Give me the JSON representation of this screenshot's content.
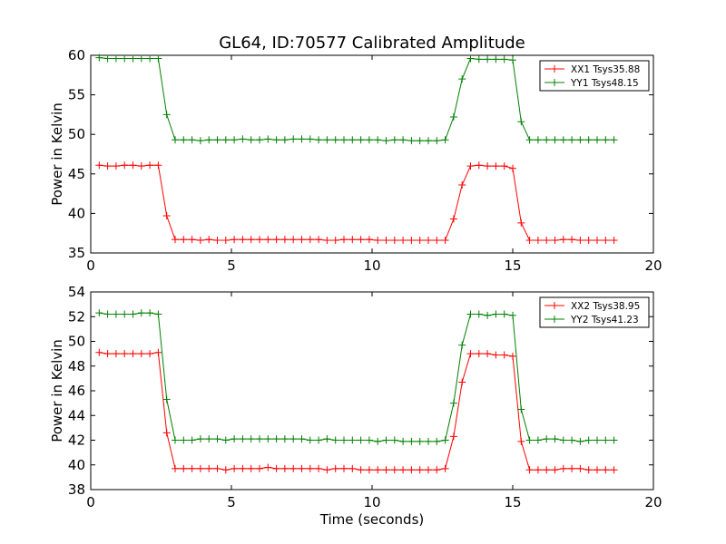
{
  "title": "GL64, ID:70577 Calibrated Amplitude",
  "xlabel": "Time (seconds)",
  "chart_data": [
    {
      "type": "line",
      "ylabel": "Power in Kelvin",
      "xlim": [
        0,
        20
      ],
      "ylim": [
        35,
        60
      ],
      "xticks": [
        0,
        5,
        10,
        15,
        20
      ],
      "yticks": [
        35,
        40,
        45,
        50,
        55,
        60
      ],
      "legend_position": "top-right",
      "series": [
        {
          "name": "XX1 Tsys35.88",
          "color": "#ff0000",
          "x": [
            0.3,
            0.6,
            0.9,
            1.2,
            1.5,
            1.8,
            2.1,
            2.4,
            2.7,
            3.0,
            3.3,
            3.6,
            3.9,
            4.2,
            4.5,
            4.8,
            5.1,
            5.4,
            5.7,
            6.0,
            6.3,
            6.6,
            6.9,
            7.2,
            7.5,
            7.8,
            8.1,
            8.4,
            8.7,
            9.0,
            9.3,
            9.6,
            9.9,
            10.2,
            10.5,
            10.8,
            11.1,
            11.4,
            11.7,
            12.0,
            12.3,
            12.6,
            12.9,
            13.2,
            13.5,
            13.8,
            14.1,
            14.4,
            14.7,
            15.0,
            15.3,
            15.6,
            15.9,
            16.2,
            16.5,
            16.8,
            17.1,
            17.4,
            17.7,
            18.0,
            18.3,
            18.6
          ],
          "y": [
            46.1,
            46.0,
            46.0,
            46.1,
            46.1,
            46.0,
            46.1,
            46.1,
            39.7,
            36.7,
            36.7,
            36.7,
            36.6,
            36.7,
            36.6,
            36.6,
            36.7,
            36.7,
            36.7,
            36.7,
            36.7,
            36.7,
            36.7,
            36.7,
            36.7,
            36.7,
            36.7,
            36.6,
            36.6,
            36.7,
            36.7,
            36.7,
            36.7,
            36.6,
            36.6,
            36.6,
            36.6,
            36.6,
            36.6,
            36.6,
            36.6,
            36.6,
            39.3,
            43.6,
            46.0,
            46.1,
            46.0,
            46.0,
            46.0,
            45.7,
            38.8,
            36.6,
            36.6,
            36.6,
            36.6,
            36.7,
            36.7,
            36.6,
            36.6,
            36.6,
            36.6,
            36.6
          ]
        },
        {
          "name": "YY1 Tsys48.15",
          "color": "#008000",
          "x": [
            0.3,
            0.6,
            0.9,
            1.2,
            1.5,
            1.8,
            2.1,
            2.4,
            2.7,
            3.0,
            3.3,
            3.6,
            3.9,
            4.2,
            4.5,
            4.8,
            5.1,
            5.4,
            5.7,
            6.0,
            6.3,
            6.6,
            6.9,
            7.2,
            7.5,
            7.8,
            8.1,
            8.4,
            8.7,
            9.0,
            9.3,
            9.6,
            9.9,
            10.2,
            10.5,
            10.8,
            11.1,
            11.4,
            11.7,
            12.0,
            12.3,
            12.6,
            12.9,
            13.2,
            13.5,
            13.8,
            14.1,
            14.4,
            14.7,
            15.0,
            15.3,
            15.6,
            15.9,
            16.2,
            16.5,
            16.8,
            17.1,
            17.4,
            17.7,
            18.0,
            18.3,
            18.6
          ],
          "y": [
            59.7,
            59.6,
            59.6,
            59.6,
            59.6,
            59.6,
            59.6,
            59.6,
            52.5,
            49.3,
            49.3,
            49.3,
            49.2,
            49.3,
            49.3,
            49.3,
            49.3,
            49.4,
            49.3,
            49.3,
            49.4,
            49.3,
            49.3,
            49.4,
            49.4,
            49.4,
            49.3,
            49.3,
            49.3,
            49.3,
            49.3,
            49.3,
            49.3,
            49.3,
            49.2,
            49.3,
            49.3,
            49.2,
            49.2,
            49.2,
            49.2,
            49.3,
            52.2,
            57.0,
            59.6,
            59.5,
            59.5,
            59.5,
            59.5,
            59.4,
            51.6,
            49.3,
            49.3,
            49.3,
            49.3,
            49.3,
            49.3,
            49.3,
            49.3,
            49.3,
            49.3,
            49.3
          ]
        }
      ]
    },
    {
      "type": "line",
      "ylabel": "Power in Kelvin",
      "xlim": [
        0,
        20
      ],
      "ylim": [
        38,
        54
      ],
      "xticks": [
        0,
        5,
        10,
        15,
        20
      ],
      "yticks": [
        38,
        40,
        42,
        44,
        46,
        48,
        50,
        52,
        54
      ],
      "legend_position": "top-right",
      "series": [
        {
          "name": "XX2 Tsys38.95",
          "color": "#ff0000",
          "x": [
            0.3,
            0.6,
            0.9,
            1.2,
            1.5,
            1.8,
            2.1,
            2.4,
            2.7,
            3.0,
            3.3,
            3.6,
            3.9,
            4.2,
            4.5,
            4.8,
            5.1,
            5.4,
            5.7,
            6.0,
            6.3,
            6.6,
            6.9,
            7.2,
            7.5,
            7.8,
            8.1,
            8.4,
            8.7,
            9.0,
            9.3,
            9.6,
            9.9,
            10.2,
            10.5,
            10.8,
            11.1,
            11.4,
            11.7,
            12.0,
            12.3,
            12.6,
            12.9,
            13.2,
            13.5,
            13.8,
            14.1,
            14.4,
            14.7,
            15.0,
            15.3,
            15.6,
            15.9,
            16.2,
            16.5,
            16.8,
            17.1,
            17.4,
            17.7,
            18.0,
            18.3,
            18.6
          ],
          "y": [
            49.1,
            49.0,
            49.0,
            49.0,
            49.0,
            49.0,
            49.0,
            49.1,
            42.6,
            39.7,
            39.7,
            39.7,
            39.7,
            39.7,
            39.7,
            39.6,
            39.7,
            39.7,
            39.7,
            39.7,
            39.8,
            39.7,
            39.7,
            39.7,
            39.7,
            39.7,
            39.7,
            39.6,
            39.7,
            39.7,
            39.7,
            39.6,
            39.6,
            39.6,
            39.6,
            39.6,
            39.6,
            39.6,
            39.6,
            39.6,
            39.6,
            39.7,
            42.3,
            46.7,
            49.0,
            49.0,
            49.0,
            48.9,
            48.9,
            48.8,
            41.9,
            39.6,
            39.6,
            39.6,
            39.6,
            39.7,
            39.7,
            39.7,
            39.6,
            39.6,
            39.6,
            39.6
          ]
        },
        {
          "name": "YY2 Tsys41.23",
          "color": "#008000",
          "x": [
            0.3,
            0.6,
            0.9,
            1.2,
            1.5,
            1.8,
            2.1,
            2.4,
            2.7,
            3.0,
            3.3,
            3.6,
            3.9,
            4.2,
            4.5,
            4.8,
            5.1,
            5.4,
            5.7,
            6.0,
            6.3,
            6.6,
            6.9,
            7.2,
            7.5,
            7.8,
            8.1,
            8.4,
            8.7,
            9.0,
            9.3,
            9.6,
            9.9,
            10.2,
            10.5,
            10.8,
            11.1,
            11.4,
            11.7,
            12.0,
            12.3,
            12.6,
            12.9,
            13.2,
            13.5,
            13.8,
            14.1,
            14.4,
            14.7,
            15.0,
            15.3,
            15.6,
            15.9,
            16.2,
            16.5,
            16.8,
            17.1,
            17.4,
            17.7,
            18.0,
            18.3,
            18.6
          ],
          "y": [
            52.3,
            52.2,
            52.2,
            52.2,
            52.2,
            52.3,
            52.3,
            52.2,
            45.3,
            42.0,
            42.0,
            42.0,
            42.1,
            42.1,
            42.1,
            42.0,
            42.1,
            42.1,
            42.1,
            42.1,
            42.1,
            42.1,
            42.1,
            42.1,
            42.1,
            42.0,
            42.0,
            42.1,
            42.0,
            42.0,
            42.0,
            42.0,
            42.0,
            41.9,
            42.0,
            42.0,
            41.9,
            41.9,
            41.9,
            41.9,
            41.9,
            42.0,
            45.0,
            49.7,
            52.2,
            52.2,
            52.1,
            52.2,
            52.2,
            52.1,
            44.5,
            42.0,
            42.0,
            42.1,
            42.1,
            42.0,
            42.0,
            41.9,
            42.0,
            42.0,
            42.0,
            42.0
          ]
        }
      ]
    }
  ]
}
